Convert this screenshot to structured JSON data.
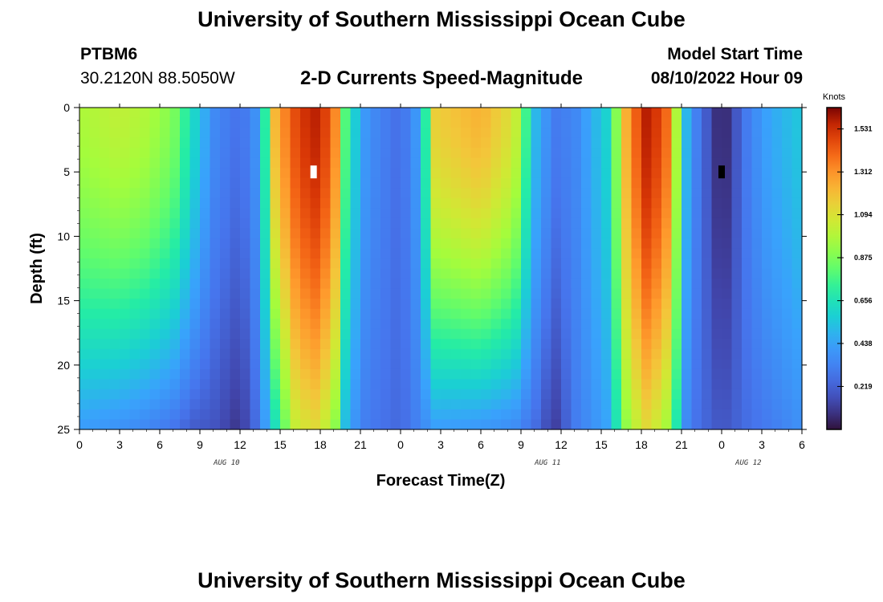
{
  "page": {
    "title_top": "University of Southern Mississippi Ocean Cube",
    "title_bottom": "University of Southern Mississippi Ocean Cube",
    "station_id": "PTBM6",
    "station_coords": "30.2120N  88.5050W",
    "subtitle": "2-D Currents Speed-Magnitude",
    "model_start_label": "Model Start Time",
    "model_start_value": "08/10/2022 Hour 09"
  },
  "chart_data": {
    "type": "heatmap",
    "title": "2-D Currents Speed-Magnitude",
    "xlabel": "Forecast Time(Z)",
    "ylabel": "Depth (ft)",
    "x_hours_range": [
      0,
      54
    ],
    "xticks": [
      "0",
      "3",
      "6",
      "9",
      "12",
      "15",
      "18",
      "21",
      "0",
      "3",
      "6",
      "9",
      "12",
      "15",
      "18",
      "21",
      "0",
      "3",
      "6"
    ],
    "date_labels": [
      {
        "text": "AUG 10",
        "hour": 11
      },
      {
        "text": "AUG 11",
        "hour": 35
      },
      {
        "text": "AUG 12",
        "hour": 50
      }
    ],
    "ylim": [
      0,
      25
    ],
    "yticks": [
      0,
      5,
      10,
      15,
      20,
      25
    ],
    "colorbar": {
      "units": "Knots",
      "range": [
        0,
        1.64
      ],
      "ticks": [
        "1.531",
        "1.312",
        "1.094",
        "0.875",
        "0.656",
        "0.438",
        "0.219"
      ],
      "tick_values": [
        1.531,
        1.312,
        1.094,
        0.875,
        0.656,
        0.438,
        0.219
      ]
    },
    "speed_profile_knots": [
      {
        "hour": 0,
        "surface": 0.97,
        "bottom": 0.42
      },
      {
        "hour": 3,
        "surface": 1.02,
        "bottom": 0.38
      },
      {
        "hour": 5,
        "surface": 0.98,
        "bottom": 0.34
      },
      {
        "hour": 7,
        "surface": 0.88,
        "bottom": 0.28
      },
      {
        "hour": 8.5,
        "surface": 0.62,
        "bottom": 0.2
      },
      {
        "hour": 10,
        "surface": 0.36,
        "bottom": 0.18
      },
      {
        "hour": 12,
        "surface": 0.26,
        "bottom": 0.08
      },
      {
        "hour": 13.5,
        "surface": 0.42,
        "bottom": 0.3
      },
      {
        "hour": 14.5,
        "surface": 1.2,
        "bottom": 0.6
      },
      {
        "hour": 16,
        "surface": 1.45,
        "bottom": 1.02
      },
      {
        "hour": 17.5,
        "surface": 1.58,
        "bottom": 1.12
      },
      {
        "hour": 19,
        "surface": 1.42,
        "bottom": 0.96
      },
      {
        "hour": 20,
        "surface": 0.7,
        "bottom": 0.45
      },
      {
        "hour": 21.5,
        "surface": 0.38,
        "bottom": 0.3
      },
      {
        "hour": 24,
        "surface": 0.25,
        "bottom": 0.24
      },
      {
        "hour": 25.5,
        "surface": 0.45,
        "bottom": 0.34
      },
      {
        "hour": 26.5,
        "surface": 1.15,
        "bottom": 0.42
      },
      {
        "hour": 30,
        "surface": 1.24,
        "bottom": 0.4
      },
      {
        "hour": 32.5,
        "surface": 1.08,
        "bottom": 0.36
      },
      {
        "hour": 34,
        "surface": 0.52,
        "bottom": 0.26
      },
      {
        "hour": 35.5,
        "surface": 0.3,
        "bottom": 0.1
      },
      {
        "hour": 37,
        "surface": 0.34,
        "bottom": 0.3
      },
      {
        "hour": 39.5,
        "surface": 0.6,
        "bottom": 0.45
      },
      {
        "hour": 41,
        "surface": 1.3,
        "bottom": 0.95
      },
      {
        "hour": 42.5,
        "surface": 1.6,
        "bottom": 1.12
      },
      {
        "hour": 44,
        "surface": 1.38,
        "bottom": 0.94
      },
      {
        "hour": 45.5,
        "surface": 0.42,
        "bottom": 0.3
      },
      {
        "hour": 48,
        "surface": 0.02,
        "bottom": 0.18
      },
      {
        "hour": 50,
        "surface": 0.32,
        "bottom": 0.26
      },
      {
        "hour": 51.5,
        "surface": 0.45,
        "bottom": 0.3
      },
      {
        "hour": 54,
        "surface": 0.56,
        "bottom": 0.38
      }
    ],
    "markers": [
      {
        "hour": 17.5,
        "depth_ft": 5,
        "color": "#ffffff"
      },
      {
        "hour": 48,
        "depth_ft": 5,
        "color": "#000000"
      }
    ]
  }
}
